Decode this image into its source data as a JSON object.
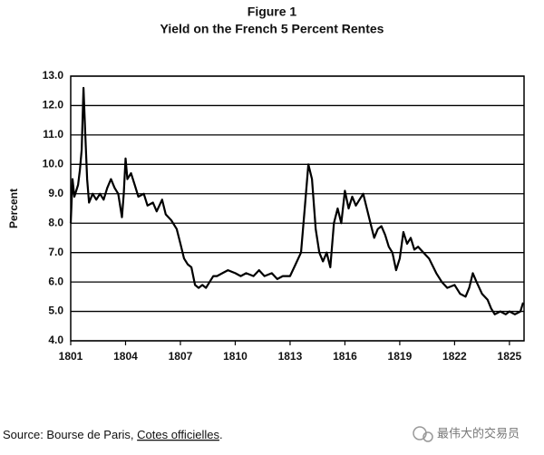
{
  "chart_data": {
    "type": "line",
    "figure_label": "Figure 1",
    "title": "Yield on the French 5 Percent Rentes",
    "y_label": "Percent",
    "source": {
      "prefix": "Source: Bourse de Paris, ",
      "publication": "Cotes officielles",
      "suffix": "."
    },
    "watermark": "最伟大的交易员",
    "x": [
      1801.0,
      1801.1,
      1801.2,
      1801.4,
      1801.5,
      1801.6,
      1801.7,
      1801.8,
      1801.9,
      1802.0,
      1802.2,
      1802.4,
      1802.6,
      1802.8,
      1803.0,
      1803.2,
      1803.4,
      1803.6,
      1803.8,
      1803.9,
      1804.0,
      1804.1,
      1804.3,
      1804.5,
      1804.7,
      1805.0,
      1805.2,
      1805.5,
      1805.7,
      1806.0,
      1806.2,
      1806.5,
      1806.8,
      1807.0,
      1807.2,
      1807.4,
      1807.6,
      1807.8,
      1808.0,
      1808.2,
      1808.4,
      1808.6,
      1808.8,
      1809.0,
      1809.3,
      1809.6,
      1810.0,
      1810.3,
      1810.6,
      1811.0,
      1811.3,
      1811.6,
      1812.0,
      1812.3,
      1812.6,
      1813.0,
      1813.3,
      1813.6,
      1813.8,
      1814.0,
      1814.2,
      1814.4,
      1814.6,
      1814.8,
      1815.0,
      1815.2,
      1815.4,
      1815.6,
      1815.8,
      1816.0,
      1816.2,
      1816.4,
      1816.6,
      1816.8,
      1817.0,
      1817.2,
      1817.4,
      1817.6,
      1817.8,
      1818.0,
      1818.2,
      1818.4,
      1818.6,
      1818.8,
      1819.0,
      1819.2,
      1819.4,
      1819.6,
      1819.8,
      1820.0,
      1820.3,
      1820.6,
      1821.0,
      1821.3,
      1821.6,
      1822.0,
      1822.3,
      1822.6,
      1822.8,
      1823.0,
      1823.2,
      1823.5,
      1823.8,
      1824.0,
      1824.2,
      1824.5,
      1824.8,
      1825.0,
      1825.3,
      1825.6,
      1825.75
    ],
    "series": [
      {
        "name": "Yield",
        "color": "#000000",
        "values": [
          8.0,
          9.5,
          8.9,
          9.3,
          9.8,
          10.5,
          12.6,
          11.0,
          9.5,
          8.7,
          9.0,
          8.8,
          9.0,
          8.8,
          9.2,
          9.5,
          9.2,
          9.0,
          8.2,
          9.0,
          10.2,
          9.5,
          9.7,
          9.3,
          8.9,
          9.0,
          8.6,
          8.7,
          8.4,
          8.8,
          8.3,
          8.1,
          7.8,
          7.3,
          6.8,
          6.6,
          6.5,
          5.9,
          5.8,
          5.9,
          5.8,
          6.0,
          6.2,
          6.2,
          6.3,
          6.4,
          6.3,
          6.2,
          6.3,
          6.2,
          6.4,
          6.2,
          6.3,
          6.1,
          6.2,
          6.2,
          6.6,
          7.0,
          8.5,
          10.0,
          9.5,
          7.8,
          7.0,
          6.7,
          7.0,
          6.5,
          8.0,
          8.5,
          8.0,
          9.1,
          8.5,
          8.9,
          8.6,
          8.8,
          9.0,
          8.5,
          8.0,
          7.5,
          7.8,
          7.9,
          7.6,
          7.2,
          7.0,
          6.4,
          6.8,
          7.7,
          7.3,
          7.5,
          7.1,
          7.2,
          7.0,
          6.8,
          6.3,
          6.0,
          5.8,
          5.9,
          5.6,
          5.5,
          5.8,
          6.3,
          6.0,
          5.6,
          5.4,
          5.1,
          4.9,
          5.0,
          4.9,
          5.0,
          4.9,
          5.0,
          5.3
        ]
      }
    ],
    "xlim": [
      1801,
      1825.8
    ],
    "xticks": [
      1801,
      1804,
      1807,
      1810,
      1813,
      1816,
      1819,
      1822,
      1825
    ],
    "ylim": [
      4,
      13
    ],
    "yticks": [
      {
        "value": 4,
        "label": "4.0"
      },
      {
        "value": 5,
        "label": "5.0"
      },
      {
        "value": 6,
        "label": "6.0"
      },
      {
        "value": 7,
        "label": "7.0"
      },
      {
        "value": 8,
        "label": "8.0"
      },
      {
        "value": 9,
        "label": "9.0"
      },
      {
        "value": 10,
        "label": "10.0"
      },
      {
        "value": 11,
        "label": "11.0"
      },
      {
        "value": 12,
        "label": "12.0"
      },
      {
        "value": 13,
        "label": "13.0"
      }
    ],
    "grid": true
  }
}
